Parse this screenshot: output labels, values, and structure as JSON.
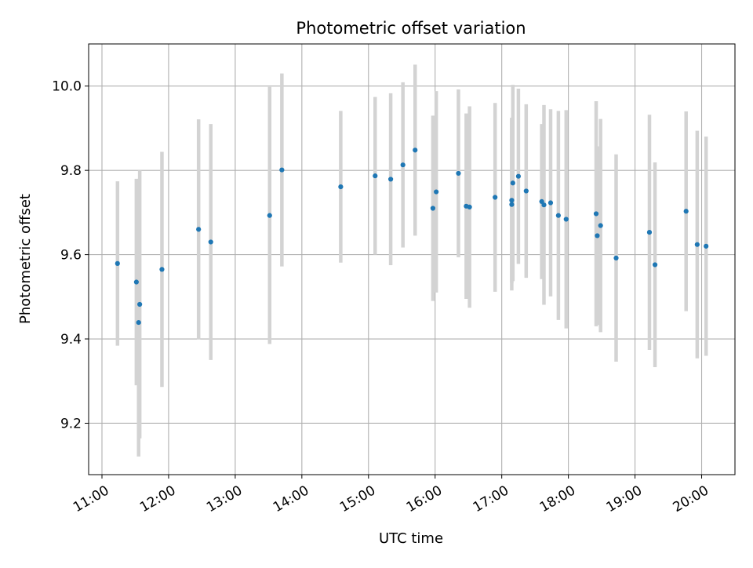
{
  "chart_data": {
    "type": "scatter",
    "title": "Photometric offset variation",
    "xlabel": "UTC time",
    "ylabel": "Photometric offset",
    "xlim": [
      "10:48",
      "20:30"
    ],
    "ylim": [
      9.078,
      10.1
    ],
    "x_ticks": [
      "11:00",
      "12:00",
      "13:00",
      "14:00",
      "15:00",
      "16:00",
      "17:00",
      "18:00",
      "19:00",
      "20:00"
    ],
    "y_ticks": [
      9.2,
      9.4,
      9.6,
      9.8,
      10.0
    ],
    "y_tick_labels": [
      "9.2",
      "9.4",
      "9.6",
      "9.8",
      "10.0"
    ],
    "grid": true,
    "marker_color": "#1f77b4",
    "errorbar_color": "#d3d3d3",
    "points": [
      {
        "x": "11:14",
        "y": 9.579,
        "err": 0.195
      },
      {
        "x": "11:31",
        "y": 9.535,
        "err": 0.245
      },
      {
        "x": "11:33",
        "y": 9.439,
        "err": 0.318
      },
      {
        "x": "11:34",
        "y": 9.482,
        "err": 0.318
      },
      {
        "x": "11:54",
        "y": 9.565,
        "err": 0.279
      },
      {
        "x": "12:27",
        "y": 9.66,
        "err": 0.261
      },
      {
        "x": "12:38",
        "y": 9.63,
        "err": 0.28
      },
      {
        "x": "13:31",
        "y": 9.693,
        "err": 0.305
      },
      {
        "x": "13:42",
        "y": 9.801,
        "err": 0.229
      },
      {
        "x": "14:35",
        "y": 9.761,
        "err": 0.18
      },
      {
        "x": "15:06",
        "y": 9.787,
        "err": 0.187
      },
      {
        "x": "15:20",
        "y": 9.779,
        "err": 0.204
      },
      {
        "x": "15:31",
        "y": 9.813,
        "err": 0.196
      },
      {
        "x": "15:42",
        "y": 9.848,
        "err": 0.203
      },
      {
        "x": "15:58",
        "y": 9.71,
        "err": 0.22
      },
      {
        "x": "16:01",
        "y": 9.749,
        "err": 0.239
      },
      {
        "x": "16:21",
        "y": 9.793,
        "err": 0.199
      },
      {
        "x": "16:28",
        "y": 9.715,
        "err": 0.22
      },
      {
        "x": "16:31",
        "y": 9.713,
        "err": 0.239
      },
      {
        "x": "16:54",
        "y": 9.736,
        "err": 0.224
      },
      {
        "x": "17:09",
        "y": 9.729,
        "err": 0.196
      },
      {
        "x": "17:09",
        "y": 9.719,
        "err": 0.204
      },
      {
        "x": "17:10",
        "y": 9.77,
        "err": 0.233
      },
      {
        "x": "17:15",
        "y": 9.786,
        "err": 0.208
      },
      {
        "x": "17:22",
        "y": 9.751,
        "err": 0.206
      },
      {
        "x": "17:36",
        "y": 9.726,
        "err": 0.184
      },
      {
        "x": "17:38",
        "y": 9.718,
        "err": 0.237
      },
      {
        "x": "17:44",
        "y": 9.723,
        "err": 0.222
      },
      {
        "x": "17:51",
        "y": 9.693,
        "err": 0.248
      },
      {
        "x": "17:58",
        "y": 9.684,
        "err": 0.259
      },
      {
        "x": "18:25",
        "y": 9.697,
        "err": 0.267
      },
      {
        "x": "18:26",
        "y": 9.645,
        "err": 0.212
      },
      {
        "x": "18:29",
        "y": 9.669,
        "err": 0.253
      },
      {
        "x": "18:43",
        "y": 9.592,
        "err": 0.246
      },
      {
        "x": "19:13",
        "y": 9.653,
        "err": 0.279
      },
      {
        "x": "19:18",
        "y": 9.576,
        "err": 0.243
      },
      {
        "x": "19:46",
        "y": 9.703,
        "err": 0.237
      },
      {
        "x": "19:56",
        "y": 9.624,
        "err": 0.27
      },
      {
        "x": "20:04",
        "y": 9.62,
        "err": 0.26
      }
    ]
  }
}
